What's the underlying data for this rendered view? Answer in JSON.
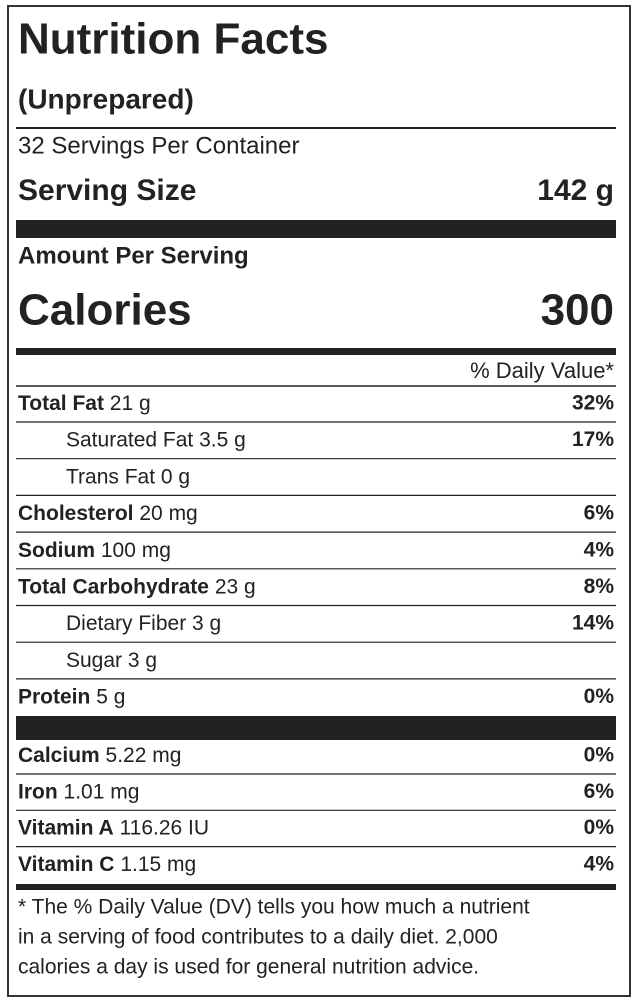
{
  "header": {
    "title": "Nutrition Facts",
    "subtitle": "(Unprepared)",
    "servings": "32 Servings Per Container",
    "serving_size_label": "Serving Size",
    "serving_size": "142 g"
  },
  "calories": {
    "heading": "Amount Per Serving",
    "label": "Calories",
    "value": "300"
  },
  "dv_heading": "% Daily Value*",
  "nutrients": [
    {
      "name": "Total Fat",
      "amount": "21 g",
      "dv": "32%",
      "sub": [
        {
          "name": "Saturated Fat",
          "amount": "3.5 g",
          "dv": "17%"
        },
        {
          "name": "Trans Fat",
          "amount": "0 g"
        }
      ]
    },
    {
      "name": "Cholesterol",
      "amount": "20 mg",
      "dv": "6%"
    },
    {
      "name": "Sodium",
      "amount": "100 mg",
      "dv": "4%"
    },
    {
      "name": "Total Carbohydrate",
      "amount": "23 g",
      "dv": "8%",
      "sub": [
        {
          "name": "Dietary Fiber",
          "amount": "3 g",
          "dv": "14%"
        },
        {
          "name": "Sugar",
          "amount": "3 g"
        }
      ]
    },
    {
      "name": "Protein",
      "amount": "5 g",
      "dv": "0%"
    }
  ],
  "vitamins": [
    {
      "name": "Calcium",
      "amount": "5.22 mg",
      "dv": "0%"
    },
    {
      "name": "Iron",
      "amount": "1.01 mg",
      "dv": "6%"
    },
    {
      "name": "Vitamin A",
      "amount": "116.26 IU",
      "dv": "0%"
    },
    {
      "name": "Vitamin C",
      "amount": "1.15 mg",
      "dv": "4%"
    }
  ],
  "footnote": [
    "* The % Daily Value (DV) tells you how much a nutrient",
    "in a serving of food contributes to a daily diet. 2,000",
    "calories a day is used for general nutrition advice."
  ]
}
